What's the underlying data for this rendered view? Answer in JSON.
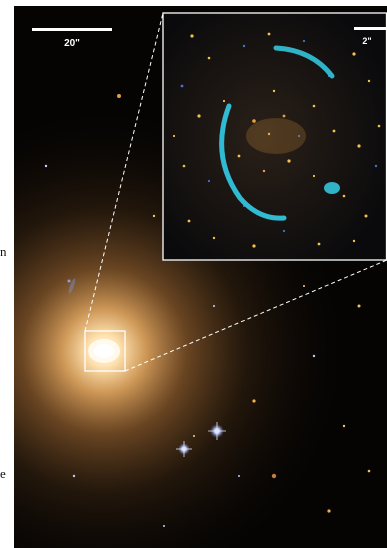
{
  "margin_text": {
    "line1": "n",
    "line2": "e"
  },
  "main_image": {
    "scale_bar_label": "20\""
  },
  "inset_image": {
    "scale_bar_label": "2\""
  },
  "colors": {
    "sky_background": "#050403",
    "galaxy_core": "#fff6e0",
    "galaxy_halo": "#c98f4c",
    "einstein_ring": "#33c4dc",
    "inset_border": "#ffffff",
    "star_blue": "#cfd8ff",
    "star_yellow": "#f2c24a"
  }
}
